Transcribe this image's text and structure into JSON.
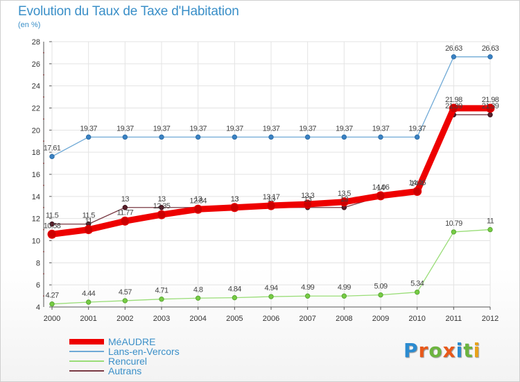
{
  "header": {
    "title": "Evolution du Taux de Taxe d'Habitation",
    "subtitle": "(en %)"
  },
  "logo": {
    "letters": [
      "P",
      "r",
      "o",
      "x",
      "i",
      "t",
      "i"
    ],
    "colors": [
      "#2b8bd0",
      "#e8591a",
      "#6cb43f",
      "#e8591a",
      "#2b8bd0",
      "#6cb43f",
      "#e8a21a"
    ]
  },
  "chart_data": {
    "type": "line",
    "x": [
      "2000",
      "2001",
      "2002",
      "2003",
      "2004",
      "2005",
      "2006",
      "2007",
      "2008",
      "2009",
      "2010",
      "2011",
      "2012"
    ],
    "ylim": [
      4,
      28
    ],
    "yticks": [
      "4",
      "6",
      "8",
      "10",
      "12",
      "14",
      "16",
      "18",
      "20",
      "22",
      "24",
      "26",
      "28"
    ],
    "grid": true,
    "legend_position": "bottom-left",
    "series": [
      {
        "name": "MéAUDRE",
        "color": "#ee0000",
        "values": [
          10.58,
          11,
          11.77,
          12.35,
          12.84,
          13,
          13.17,
          13.3,
          13.5,
          14.06,
          14.46,
          21.98,
          21.98
        ],
        "labels": [
          "10.58",
          "11",
          "11.77",
          "12.35",
          "12.84",
          "13",
          "13.17",
          "13.3",
          "13.5",
          "14.06",
          "14.46",
          "21.98",
          "21.98"
        ]
      },
      {
        "name": "Lans-en-Vercors",
        "color": "#6fa9d6",
        "values": [
          17.61,
          19.37,
          19.37,
          19.37,
          19.37,
          19.37,
          19.37,
          19.37,
          19.37,
          19.37,
          19.37,
          26.63,
          26.63
        ],
        "labels": [
          "17.61",
          "19.37",
          "19.37",
          "19.37",
          "19.37",
          "19.37",
          "19.37",
          "19.37",
          "19.37",
          "19.37",
          "19.37",
          "26.63",
          "26.63"
        ]
      },
      {
        "name": "Rencurel",
        "color": "#99dd77",
        "values": [
          4.27,
          4.44,
          4.57,
          4.71,
          4.8,
          4.84,
          4.94,
          4.99,
          4.99,
          5.09,
          5.34,
          10.79,
          11
        ],
        "labels": [
          "4.27",
          "4.44",
          "4.57",
          "4.71",
          "4.8",
          "4.84",
          "4.94",
          "4.99",
          "4.99",
          "5.09",
          "5.34",
          "10.79",
          "11"
        ]
      },
      {
        "name": "Autrans",
        "color": "#7a3a44",
        "values": [
          11.5,
          11.5,
          13,
          13,
          13,
          13,
          13,
          13,
          13,
          14,
          14.4,
          21.39,
          21.39
        ],
        "labels": [
          "11.5",
          "11.5",
          "13",
          "13",
          "13",
          "13",
          "13",
          "13",
          "13",
          "14",
          "14.4",
          "21.39",
          "21.39"
        ]
      }
    ]
  }
}
